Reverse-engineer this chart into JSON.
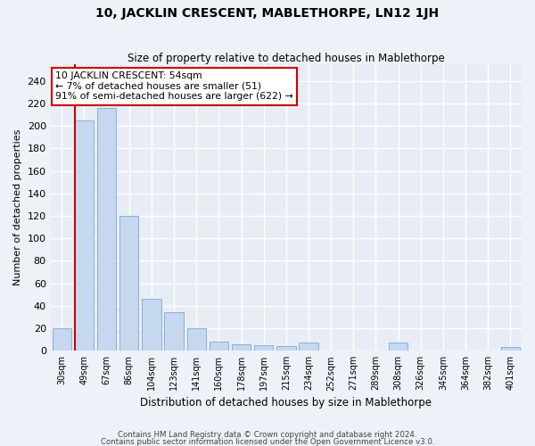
{
  "title": "10, JACKLIN CRESCENT, MABLETHORPE, LN12 1JH",
  "subtitle": "Size of property relative to detached houses in Mablethorpe",
  "xlabel": "Distribution of detached houses by size in Mablethorpe",
  "ylabel": "Number of detached properties",
  "bar_color": "#c5d8ef",
  "bar_edge_color": "#7aaad0",
  "bg_color": "#e8edf5",
  "fig_color": "#edf1f8",
  "categories": [
    "30sqm",
    "49sqm",
    "67sqm",
    "86sqm",
    "104sqm",
    "123sqm",
    "141sqm",
    "160sqm",
    "178sqm",
    "197sqm",
    "215sqm",
    "234sqm",
    "252sqm",
    "271sqm",
    "289sqm",
    "308sqm",
    "326sqm",
    "345sqm",
    "364sqm",
    "382sqm",
    "401sqm"
  ],
  "values": [
    20,
    205,
    216,
    120,
    46,
    34,
    20,
    8,
    6,
    5,
    4,
    7,
    0,
    0,
    0,
    7,
    0,
    0,
    0,
    0,
    3
  ],
  "ylim": [
    0,
    255
  ],
  "yticks": [
    0,
    20,
    40,
    60,
    80,
    100,
    120,
    140,
    160,
    180,
    200,
    220,
    240
  ],
  "red_line_color": "#cc0000",
  "annotation_line1": "10 JACKLIN CRESCENT: 54sqm",
  "annotation_line2": "← 7% of detached houses are smaller (51)",
  "annotation_line3": "91% of semi-detached houses are larger (622) →",
  "footer1": "Contains HM Land Registry data © Crown copyright and database right 2024.",
  "footer2": "Contains public sector information licensed under the Open Government Licence v3.0."
}
